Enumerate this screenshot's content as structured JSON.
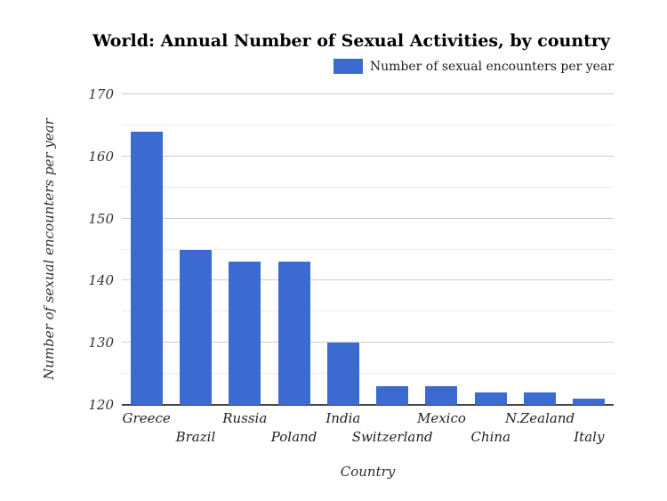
{
  "chart_data": {
    "type": "bar",
    "title": "World: Annual Number of Sexual Activities, by country",
    "legend": {
      "label": "Number of sexual encounters per year",
      "position": "top-right"
    },
    "xlabel": "Country",
    "ylabel": "Number of sexual encounters per year",
    "categories": [
      "Greece",
      "Brazil",
      "Russia",
      "Poland",
      "India",
      "Switzerland",
      "Mexico",
      "China",
      "N.Zealand",
      "Italy"
    ],
    "values": [
      164,
      145,
      143,
      143,
      130,
      123,
      123,
      122,
      122,
      121
    ],
    "ylim": [
      120,
      170
    ],
    "yticks_major": [
      120,
      130,
      140,
      150,
      160,
      170
    ],
    "ytick_minor_step": 5,
    "grid": "horizontal-only",
    "x_labels_staggered": true,
    "colors": {
      "bar": "#3b6bd0",
      "grid_major": "#cccccc",
      "grid_minor": "#ececec",
      "axis_line": "#444444",
      "tick_text": "#333333",
      "title_text": "#000000"
    }
  }
}
